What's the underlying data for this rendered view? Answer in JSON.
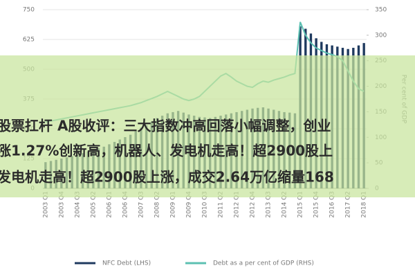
{
  "chart_data": {
    "type": "bar_line",
    "categories": [
      "2003 Q1",
      null,
      null,
      "2003 Q4",
      null,
      null,
      "2004 Q3",
      null,
      null,
      "2005 Q2",
      null,
      null,
      "2006 Q1",
      null,
      null,
      "2006 Q4",
      null,
      null,
      "2007 Q3",
      null,
      null,
      "2008 Q2",
      null,
      null,
      "2009 Q1",
      null,
      null,
      "2009 Q4",
      null,
      null,
      "2010 Q3",
      null,
      null,
      "2011 Q2",
      null,
      null,
      "2012 Q1",
      null,
      null,
      "2012 Q4",
      null,
      null,
      "2013 Q3",
      null,
      null,
      "2014 Q2",
      null,
      null,
      "2015 Q1",
      null,
      null,
      "2015 Q4",
      null,
      null,
      "2016 Q3",
      null,
      null,
      "2017 Q2",
      null,
      null,
      "2018 Q1"
    ],
    "series": [
      {
        "name": "NFC Debt (LHS)",
        "color": "#1f3a5f",
        "kind": "bar",
        "axis": "y",
        "values": [
          110,
          115,
          120,
          125,
          130,
          135,
          140,
          148,
          155,
          160,
          168,
          175,
          185,
          195,
          205,
          215,
          225,
          240,
          255,
          265,
          280,
          295,
          305,
          315,
          320,
          325,
          318,
          310,
          305,
          300,
          298,
          295,
          300,
          305,
          310,
          315,
          320,
          325,
          330,
          335,
          338,
          340,
          335,
          330,
          325,
          320,
          318,
          315,
          680,
          670,
          650,
          630,
          615,
          605,
          600,
          595,
          590,
          585,
          590,
          600,
          610
        ]
      },
      {
        "name": "Debt as a per cent of GDP (RHS)",
        "color": "#5cc0b2",
        "kind": "line",
        "axis": "y2",
        "values": [
          130,
          132,
          134,
          136,
          138,
          140,
          142,
          144,
          146,
          148,
          150,
          152,
          154,
          156,
          158,
          160,
          162,
          165,
          168,
          172,
          176,
          180,
          185,
          190,
          185,
          180,
          175,
          172,
          175,
          180,
          190,
          200,
          210,
          220,
          225,
          218,
          210,
          205,
          200,
          198,
          205,
          210,
          208,
          212,
          215,
          218,
          222,
          225,
          326,
          300,
          285,
          275,
          270,
          265,
          262,
          258,
          250,
          230,
          210,
          195,
          190
        ]
      }
    ],
    "ylim": [
      0,
      750
    ],
    "yticks": [
      0,
      125,
      250,
      375,
      500,
      625,
      750
    ],
    "y2lim": [
      0,
      350
    ],
    "y2ticks": [
      0,
      50,
      100,
      150,
      200,
      250,
      300,
      350
    ],
    "y2label": "Per cent of GDP"
  },
  "overlay_text": [
    "股票扛杆 A股收评：三大指数冲高回落小幅调整，创业",
    "涨1.27%创新高，机器人、发电机走高！超2900股上",
    "发电机走高！超2900股上涨，成交2.64万亿缩量168"
  ]
}
